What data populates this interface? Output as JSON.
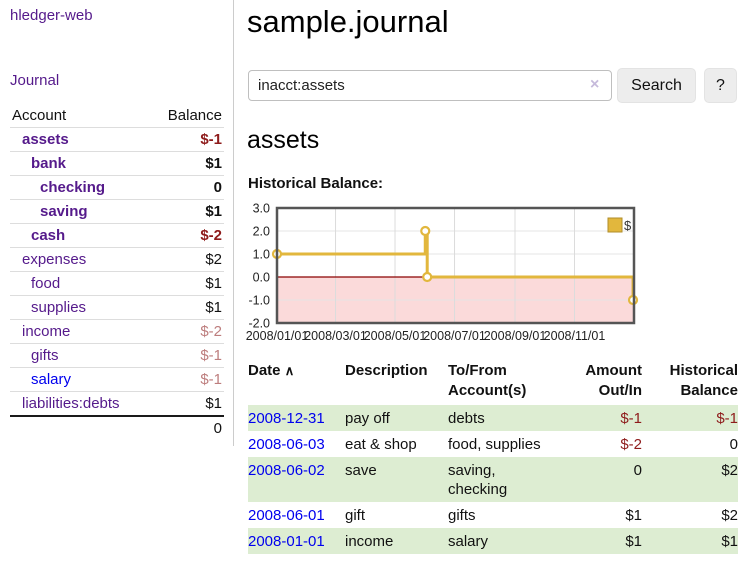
{
  "sidebar": {
    "brand": "hledger-web",
    "journal_link": "Journal",
    "accounts": {
      "header_account": "Account",
      "header_balance": "Balance",
      "rows": [
        {
          "name": "assets",
          "balance": "$-1",
          "level": 1,
          "bold": true,
          "balance_style": "neg"
        },
        {
          "name": "bank",
          "balance": "$1",
          "level": 2,
          "bold": true,
          "balance_style": "pos"
        },
        {
          "name": "checking",
          "balance": "0",
          "level": 3,
          "bold": true,
          "balance_style": "pos"
        },
        {
          "name": "saving",
          "balance": "$1",
          "level": 3,
          "bold": true,
          "balance_style": "pos"
        },
        {
          "name": "cash",
          "balance": "$-2",
          "level": 2,
          "bold": true,
          "balance_style": "neg"
        },
        {
          "name": "expenses",
          "balance": "$2",
          "level": 1,
          "bold": false,
          "balance_style": "pos"
        },
        {
          "name": "food",
          "balance": "$1",
          "level": 2,
          "bold": false,
          "balance_style": "pos"
        },
        {
          "name": "supplies",
          "balance": "$1",
          "level": 2,
          "bold": false,
          "balance_style": "pos"
        },
        {
          "name": "income",
          "balance": "$-2",
          "level": 1,
          "bold": false,
          "balance_style": "negdim"
        },
        {
          "name": "gifts",
          "balance": "$-1",
          "level": 2,
          "bold": false,
          "balance_style": "negdim"
        },
        {
          "name": "salary",
          "balance": "$-1",
          "level": 2,
          "bold": false,
          "balance_style": "negdim",
          "link_style": "blue"
        },
        {
          "name": "liabilities:debts",
          "balance": "$1",
          "level": 1,
          "bold": false,
          "balance_style": "pos"
        }
      ],
      "total": "0"
    }
  },
  "main": {
    "title": "sample.journal",
    "search": {
      "value": "inacct:assets",
      "clear_icon": "×",
      "search_button": "Search",
      "help_button": "?"
    },
    "account_heading": "assets",
    "chart_title": "Historical Balance:"
  },
  "chart_data": {
    "type": "line",
    "step": true,
    "title": "Historical Balance:",
    "x_range": [
      "2008-01-01",
      "2009-01-01"
    ],
    "ylim": [
      -2,
      3
    ],
    "y_ticks": [
      {
        "label": "3.0",
        "value": 3
      },
      {
        "label": "2.0",
        "value": 2
      },
      {
        "label": "1.0",
        "value": 1
      },
      {
        "label": "0.0",
        "value": 0
      },
      {
        "label": "-1.0",
        "value": -1
      },
      {
        "label": "-2.0",
        "value": -2
      }
    ],
    "x_ticks": [
      {
        "label": "2008/01/01",
        "date": "2008-01-01"
      },
      {
        "label": "2008/03/01",
        "date": "2008-03-01"
      },
      {
        "label": "2008/05/01",
        "date": "2008-05-01"
      },
      {
        "label": "2008/07/01",
        "date": "2008-07-01"
      },
      {
        "label": "2008/09/01",
        "date": "2008-09-01"
      },
      {
        "label": "2008/11/01",
        "date": "2008-11-01"
      }
    ],
    "series": [
      {
        "name": "$",
        "color": "#e2b73d",
        "points": [
          {
            "date": "2008-01-01",
            "value": 1
          },
          {
            "date": "2008-06-01",
            "value": 2
          },
          {
            "date": "2008-06-03",
            "value": 0
          },
          {
            "date": "2008-12-31",
            "value": -1
          }
        ]
      }
    ],
    "legend_position": "top-right",
    "grid": true,
    "negative_fill": "#fbdada",
    "zero_line_color": "#8b0000"
  },
  "register": {
    "headers": {
      "date": "Date",
      "sort_icon": "∧",
      "description": "Description",
      "accounts": "To/From Account(s)",
      "amount": "Amount Out/In",
      "balance": "Historical Balance"
    },
    "rows": [
      {
        "date": "2008-12-31",
        "description": "pay off",
        "accounts": "debts",
        "amount": "$-1",
        "balance": "$-1",
        "amount_neg": true,
        "balance_neg": true
      },
      {
        "date": "2008-06-03",
        "description": "eat & shop",
        "accounts": "food, supplies",
        "amount": "$-2",
        "balance": "0",
        "amount_neg": true,
        "balance_neg": false
      },
      {
        "date": "2008-06-02",
        "description": "save",
        "accounts": "saving, checking",
        "amount": "0",
        "balance": "$2",
        "amount_neg": false,
        "balance_neg": false
      },
      {
        "date": "2008-06-01",
        "description": "gift",
        "accounts": "gifts",
        "amount": "$1",
        "balance": "$2",
        "amount_neg": false,
        "balance_neg": false
      },
      {
        "date": "2008-01-01",
        "description": "income",
        "accounts": "salary",
        "amount": "$1",
        "balance": "$1",
        "amount_neg": false,
        "balance_neg": false
      }
    ]
  },
  "colors": {
    "link_visited_purple": "#551a8b",
    "link_blue": "#0000ee",
    "negative_red": "#8e1b1b",
    "negative_dim_red": "#bd7d7d",
    "row_stripe_green": "#ddedd2",
    "series_gold": "#e2b73d",
    "negative_region_pink": "#fbdada",
    "zero_line_dark_red": "#8b0000"
  }
}
